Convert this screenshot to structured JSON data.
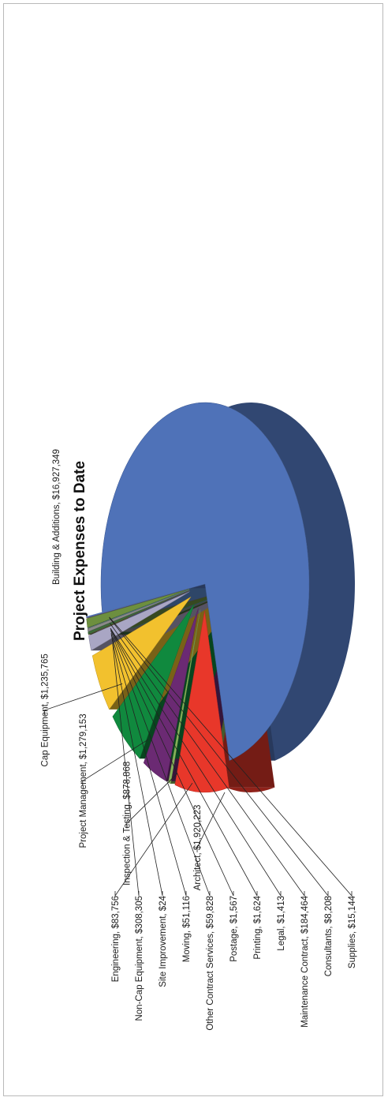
{
  "chart_data": {
    "type": "pie",
    "title": "Project Expenses to Date",
    "series": [
      {
        "name": "Building & Additions",
        "value": 16927349,
        "label": "Building & Additions, $16,927,349",
        "color": "#4f72b8"
      },
      {
        "name": "Architect",
        "value": 1920223,
        "label": "Architect, $1,920,223",
        "color": "#e8372a"
      },
      {
        "name": "Engineering",
        "value": 83756,
        "label": "Engineering, $83,756",
        "color": "#86b35a"
      },
      {
        "name": "Inspection & Testing",
        "value": 878868,
        "label": "Inspection & Testing, $878,868",
        "color": "#6b2a73"
      },
      {
        "name": "Project Management",
        "value": 1279153,
        "label": "Project Management, $1,279,153",
        "color": "#10893e"
      },
      {
        "name": "Cap Equipment",
        "value": 1235765,
        "label": "Cap Equipment, $1,235,765",
        "color": "#f2c12e"
      },
      {
        "name": "Non-Cap Equipment",
        "value": 308305,
        "label": "Non-Cap Equipment, $308,305",
        "color": "#a9a6c4"
      },
      {
        "name": "Site Improvement",
        "value": 24,
        "label": "Site Improvement, $24",
        "color": "#c0504d"
      },
      {
        "name": "Moving",
        "value": 51116,
        "label": "Moving, $51,116",
        "color": "#3d6b3a"
      },
      {
        "name": "Other Contract Services",
        "value": 59828,
        "label": "Other Contract Services, $59,828",
        "color": "#8a8a8a"
      },
      {
        "name": "Postage",
        "value": 1567,
        "label": "Postage, $1,567",
        "color": "#d98a2b"
      },
      {
        "name": "Printing",
        "value": 1624,
        "label": "Printing, $1,624",
        "color": "#c0392b"
      },
      {
        "name": "Legal",
        "value": 1413,
        "label": "Legal, $1,413",
        "color": "#4aa3c0"
      },
      {
        "name": "Maintenance Contract",
        "value": 184464,
        "label": "Maintenance Contract, $184,464",
        "color": "#6d8f3f"
      },
      {
        "name": "Consultants",
        "value": 8208,
        "label": "Consultants, $8,208",
        "color": "#8e5fa8"
      },
      {
        "name": "Supplies",
        "value": 15144,
        "label": "Supplies, $15,144",
        "color": "#5b8bd0"
      }
    ],
    "legend": "none",
    "style": "3D exploded pie, chart rotated 90 degrees counter-clockwise, data labels with leader lines"
  }
}
